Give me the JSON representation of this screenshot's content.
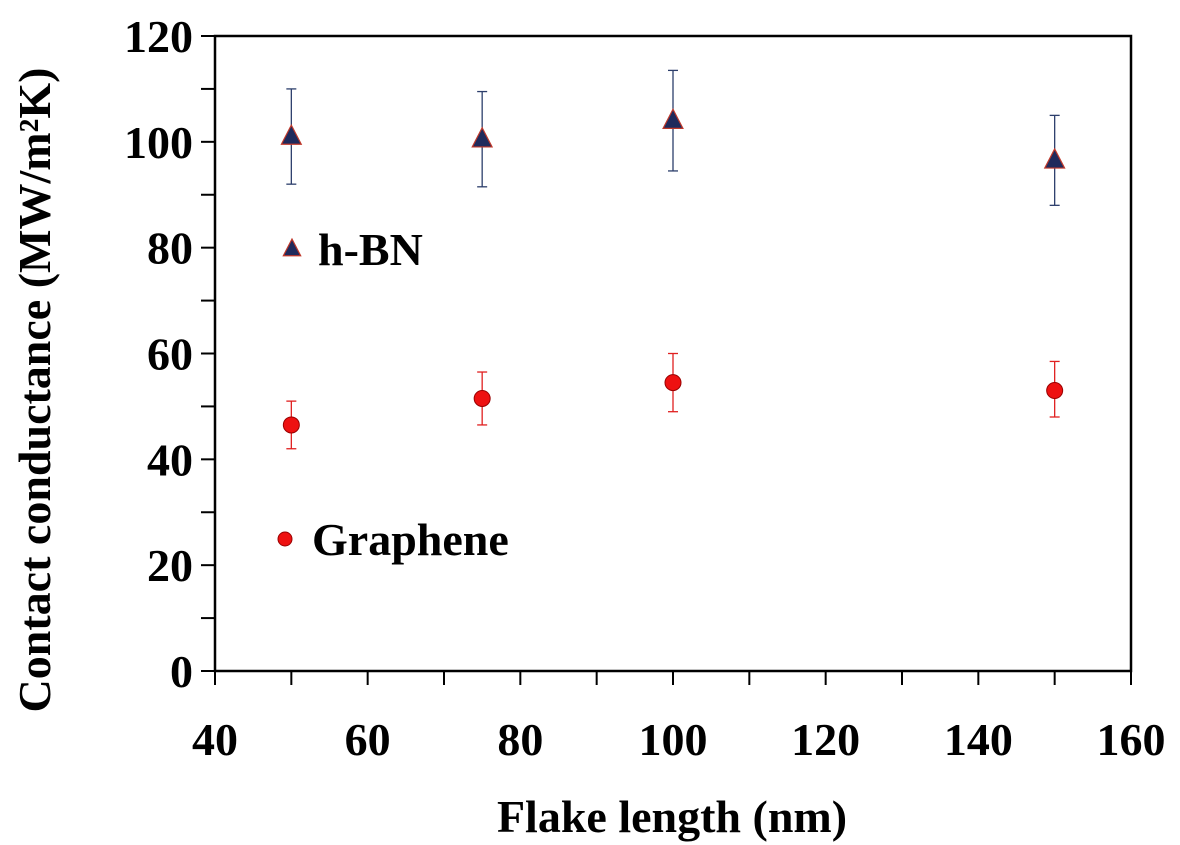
{
  "chart_data": {
    "type": "scatter",
    "title": "",
    "xlabel": "Flake length (nm)",
    "ylabel": "Contact conductance (MW/m²K)",
    "xlim": [
      40,
      160
    ],
    "ylim": [
      0,
      120
    ],
    "x_major_ticks": [
      40,
      60,
      80,
      100,
      120,
      140,
      160
    ],
    "y_major_ticks": [
      0,
      20,
      40,
      60,
      80,
      100,
      120
    ],
    "x_tick_labels": [
      "40",
      "60",
      "80",
      "100",
      "120",
      "140",
      "160"
    ],
    "y_tick_labels": [
      "0",
      "20",
      "40",
      "60",
      "80",
      "100",
      "120"
    ],
    "grid": false,
    "legend_placement": "inside-left",
    "series": [
      {
        "name": "h-BN",
        "marker": "triangle",
        "marker_color": "#1f2a5c",
        "marker_edge": "#c0392b",
        "errorbar_color": "#2c3e6b",
        "x": [
          50,
          75,
          100,
          150
        ],
        "y": [
          101,
          100.5,
          104,
          96.5
        ],
        "err_low": [
          92,
          91.5,
          94.5,
          88
        ],
        "err_high": [
          110,
          109.5,
          113.5,
          105
        ]
      },
      {
        "name": "Graphene",
        "marker": "circle",
        "marker_color": "#ee1111",
        "marker_edge": "#990000",
        "errorbar_color": "#e02020",
        "x": [
          50,
          75,
          100,
          150
        ],
        "y": [
          46.5,
          51.5,
          54.5,
          53
        ],
        "err_low": [
          42,
          46.5,
          49,
          48
        ],
        "err_high": [
          51,
          56.5,
          60,
          58.5
        ]
      }
    ]
  }
}
